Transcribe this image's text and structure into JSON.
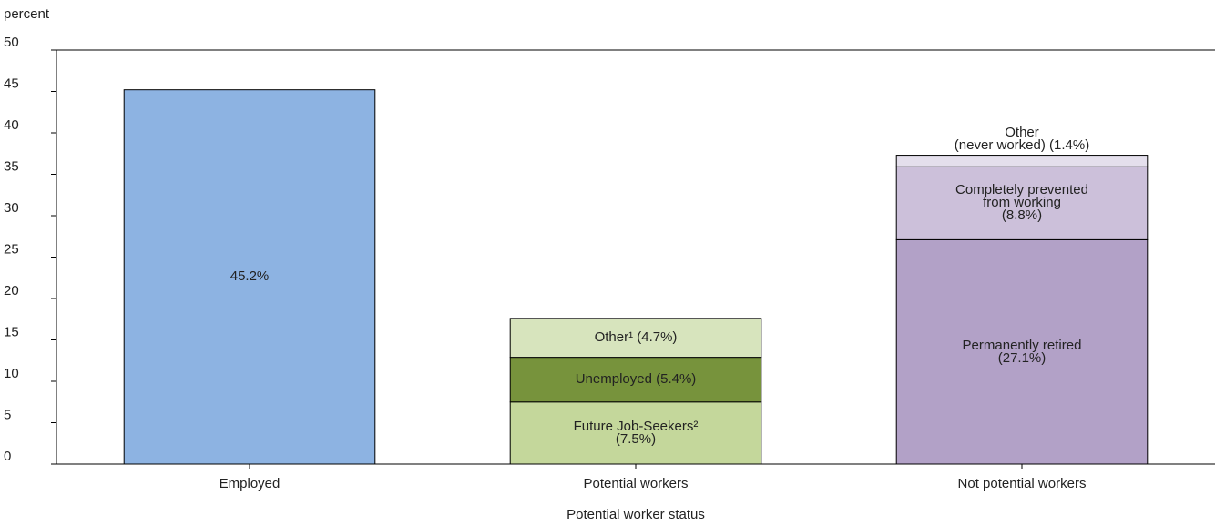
{
  "chart_data": {
    "type": "stacked_bar",
    "y_axis_label": "percent",
    "x_axis_label": "Potential worker status",
    "categories": [
      "Employed",
      "Potential workers",
      "Not potential workers"
    ],
    "series": [
      {
        "color": "#8db3e2",
        "values": [
          45.2,
          null,
          null
        ],
        "value_labels": [
          "45.2%",
          null,
          null
        ]
      },
      {
        "color": "#c4d79b",
        "values": [
          null,
          7.5,
          null
        ],
        "value_labels": [
          null,
          "Future Job-Seekers²\n(7.5%)",
          null
        ]
      },
      {
        "color": "#77933c",
        "values": [
          null,
          5.4,
          null
        ],
        "value_labels": [
          null,
          "Unemployed (5.4%)",
          null
        ]
      },
      {
        "color": "#d7e4bd",
        "values": [
          null,
          4.7,
          null
        ],
        "value_labels": [
          null,
          "Other¹ (4.7%)",
          null
        ]
      },
      {
        "color": "#b2a1c7",
        "values": [
          null,
          null,
          27.1
        ],
        "value_labels": [
          null,
          null,
          "Permanently retired\n(27.1%)"
        ]
      },
      {
        "color": "#ccc0da",
        "values": [
          null,
          null,
          8.8
        ],
        "value_labels": [
          null,
          null,
          "Completely prevented\nfrom working\n(8.8%)"
        ]
      },
      {
        "color": "#e4dfec",
        "values": [
          null,
          null,
          1.4
        ],
        "value_labels": [
          null,
          null,
          "Other\n(never worked) (1.4%)"
        ]
      }
    ],
    "ylim": [
      0,
      50
    ],
    "yticks": [
      0,
      5,
      10,
      15,
      20,
      25,
      30,
      35,
      40,
      45,
      50
    ],
    "grid": false
  }
}
